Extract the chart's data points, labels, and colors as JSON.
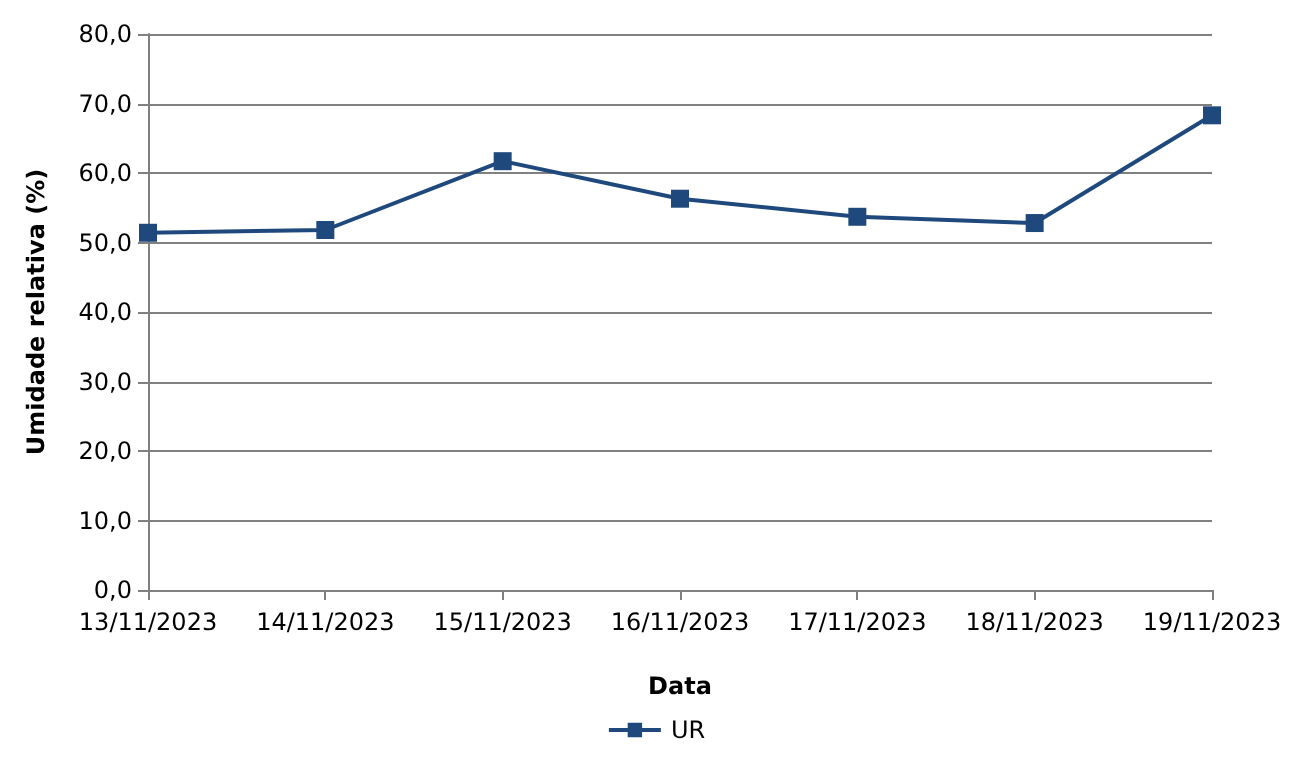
{
  "chart_data": {
    "type": "line",
    "xlabel": "Data",
    "ylabel": "Umidade relativa (%)",
    "categories": [
      "13/11/2023",
      "14/11/2023",
      "15/11/2023",
      "16/11/2023",
      "17/11/2023",
      "18/11/2023",
      "19/11/2023"
    ],
    "series": [
      {
        "name": "UR",
        "color": "#1f497d",
        "values": [
          51.4,
          51.8,
          61.7,
          56.3,
          53.7,
          52.8,
          68.3
        ]
      }
    ],
    "ylim": [
      0,
      80
    ],
    "yticks": [
      {
        "value": 0,
        "label": "0,0"
      },
      {
        "value": 10,
        "label": "10,0"
      },
      {
        "value": 20,
        "label": "20,0"
      },
      {
        "value": 30,
        "label": "30,0"
      },
      {
        "value": 40,
        "label": "40,0"
      },
      {
        "value": 50,
        "label": "50,0"
      },
      {
        "value": 60,
        "label": "60,0"
      },
      {
        "value": 70,
        "label": "70,0"
      },
      {
        "value": 80,
        "label": "80,0"
      }
    ],
    "grid": "y",
    "legend": "bottom",
    "marker": "square",
    "line_style": "solid"
  }
}
